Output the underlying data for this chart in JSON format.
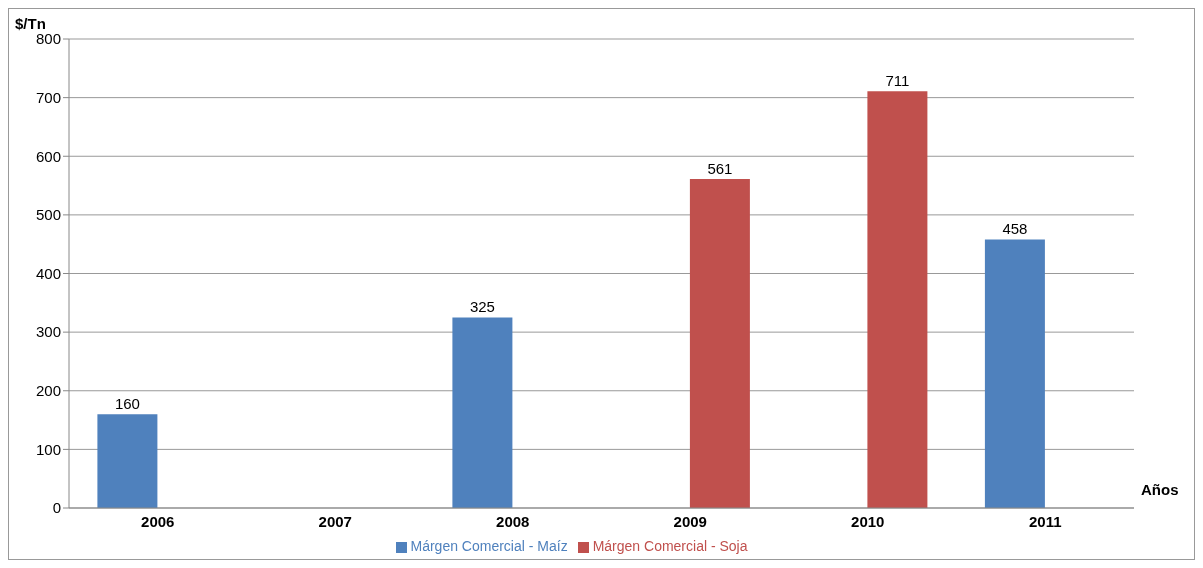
{
  "chart_data": {
    "type": "bar",
    "ylabel": "$/Tn",
    "xlabel": "Años",
    "categories": [
      "2006",
      "2007",
      "2008",
      "2009",
      "2010",
      "2011"
    ],
    "series": [
      {
        "name": "Márgen Comercial - Maíz",
        "color": "#4f81bd",
        "values": [
          160,
          null,
          325,
          null,
          null,
          458
        ]
      },
      {
        "name": "Márgen Comercial - Soja",
        "color": "#c0504d",
        "values": [
          null,
          null,
          null,
          561,
          711,
          null
        ]
      }
    ],
    "ylim": [
      0,
      800
    ],
    "yticks": [
      0,
      100,
      200,
      300,
      400,
      500,
      600,
      700,
      800
    ],
    "grid": "y",
    "legend": "bottom",
    "data_labels": true
  }
}
